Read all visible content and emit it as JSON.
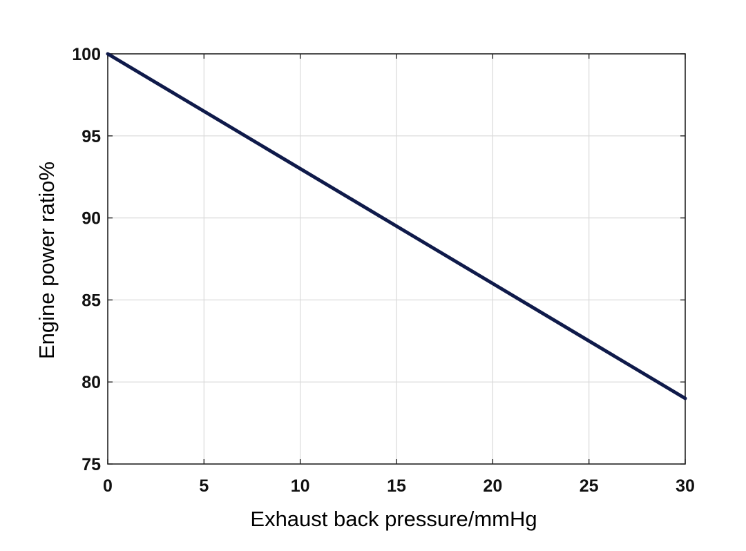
{
  "chart_data": {
    "type": "line",
    "title": "",
    "xlabel": "Exhaust back pressure/mmHg",
    "ylabel": "Engine power ratio%",
    "xlim": [
      0,
      30
    ],
    "ylim": [
      75,
      100
    ],
    "xticks": [
      0,
      5,
      10,
      15,
      20,
      25,
      30
    ],
    "yticks": [
      75,
      80,
      85,
      90,
      95,
      100
    ],
    "xtick_labels": [
      "0",
      "5",
      "10",
      "15",
      "20",
      "25",
      "30"
    ],
    "ytick_labels": [
      "75",
      "80",
      "85",
      "90",
      "95",
      "100"
    ],
    "grid": true,
    "legend": "none",
    "series": [
      {
        "color": "#0f1a4a",
        "x": [
          0,
          5,
          10,
          15,
          20,
          25,
          30
        ],
        "y": [
          100,
          96.5,
          93,
          89.5,
          86,
          82.5,
          79
        ]
      }
    ]
  },
  "colors": {
    "grid": "#d9d9d9",
    "axes": "#222222",
    "background": "#ffffff"
  }
}
